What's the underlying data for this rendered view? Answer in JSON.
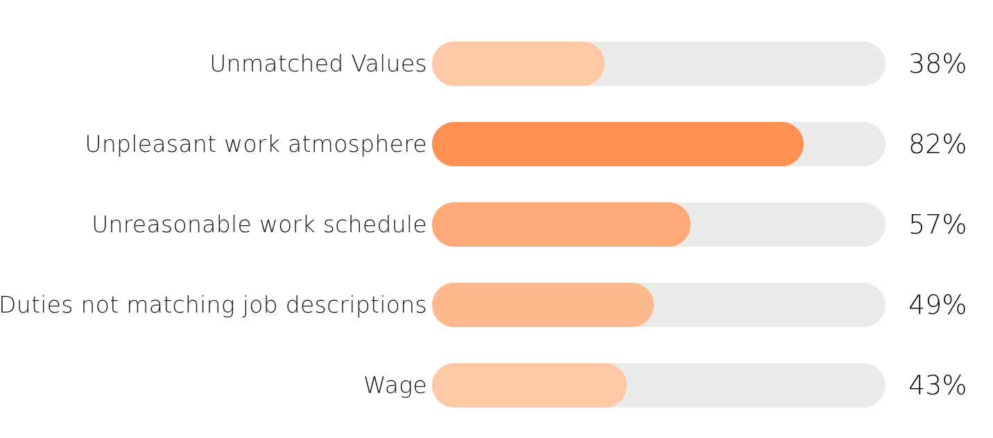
{
  "chart_data": {
    "type": "bar",
    "orientation": "horizontal",
    "categories": [
      "Unmatched Values",
      "Unpleasant work atmosphere",
      "Unreasonable work schedule",
      "Duties not matching job descriptions",
      "Wage"
    ],
    "values": [
      38,
      82,
      57,
      49,
      43
    ],
    "value_labels": [
      "38%",
      "82%",
      "57%",
      "49%",
      "43%"
    ],
    "xlim": [
      0,
      100
    ],
    "colors": [
      "#ffc9a8",
      "#ff9155",
      "#ffa878",
      "#ffb98f",
      "#ffc9a8"
    ],
    "track_color": "#ebebea",
    "grid": false,
    "legend": "none",
    "title": "",
    "xlabel": "",
    "ylabel": ""
  }
}
